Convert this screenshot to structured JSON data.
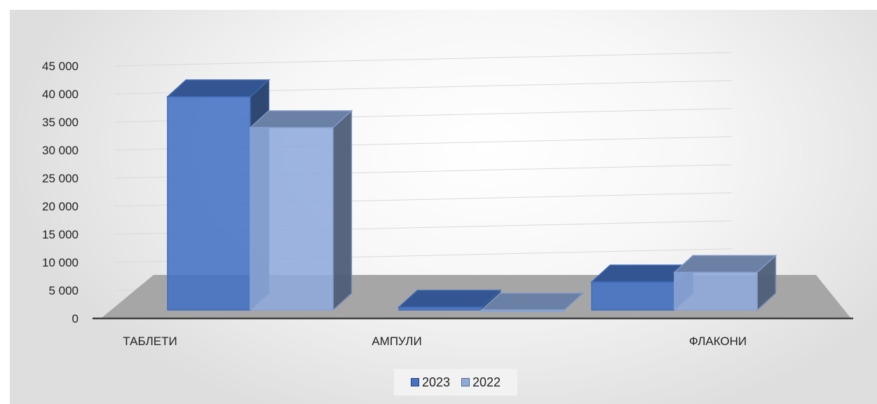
{
  "chart_data": {
    "type": "bar",
    "style": "3d-clustered-column",
    "title": "",
    "xlabel": "",
    "ylabel": "",
    "categories": [
      "ТАБЛЕТИ",
      "АМПУЛИ",
      "ФЛАКОНИ"
    ],
    "series": [
      {
        "name": "2023",
        "values": [
          39500,
          2000,
          6500
        ],
        "color": "#4472c4"
      },
      {
        "name": "2022",
        "values": [
          34000,
          1500,
          8200
        ],
        "color": "#8faadc"
      }
    ],
    "ylim": [
      0,
      45000
    ],
    "yticks": [
      "0",
      "5 000",
      "10 000",
      "15 000",
      "20 000",
      "25 000",
      "30 000",
      "35 000",
      "40 000",
      "45 000"
    ],
    "grid": true,
    "legend_position": "bottom"
  }
}
